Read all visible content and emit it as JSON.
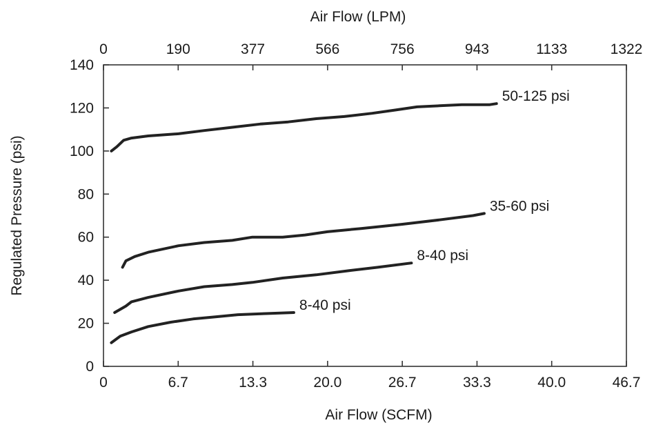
{
  "chart_data": {
    "type": "line",
    "title": "",
    "xlabel": "Air Flow (SCFM)",
    "x2label": "Air Flow (LPM)",
    "ylabel": "Regulated Pressure (psi)",
    "xlim": [
      0,
      46.7
    ],
    "ylim": [
      0,
      140
    ],
    "x_ticks": [
      "0",
      "6.7",
      "13.3",
      "20.0",
      "26.7",
      "33.3",
      "40.0",
      "46.7"
    ],
    "x2_ticks": [
      "0",
      "190",
      "377",
      "566",
      "756",
      "943",
      "1133",
      "1322"
    ],
    "y_ticks": [
      "0",
      "20",
      "40",
      "60",
      "80",
      "100",
      "120",
      "140"
    ],
    "grid": false,
    "legend": "none",
    "series": [
      {
        "name": "50-125 psi",
        "x": [
          0.7,
          1.2,
          1.8,
          2.5,
          4.0,
          6.7,
          9.0,
          11.5,
          14.0,
          16.5,
          19.0,
          21.5,
          24.0,
          26.0,
          28.0,
          30.0,
          32.0,
          34.5,
          35.1
        ],
        "y": [
          100,
          102,
          105,
          106,
          107,
          108,
          109.5,
          111,
          112.5,
          113.5,
          115,
          116,
          117.5,
          119,
          120.5,
          121,
          121.5,
          121.5,
          122
        ]
      },
      {
        "name": "35-60 psi",
        "x": [
          1.7,
          2.0,
          2.8,
          4.0,
          6.7,
          9.0,
          11.5,
          13.3,
          16.0,
          18.0,
          20.0,
          23.0,
          26.7,
          30.0,
          33.0,
          34.0
        ],
        "y": [
          46,
          49,
          51,
          53,
          56,
          57.5,
          58.5,
          60,
          60,
          61,
          62.5,
          64,
          66,
          68,
          70,
          71
        ]
      },
      {
        "name": "8-40 psi",
        "x": [
          1.0,
          2.0,
          2.5,
          4.0,
          6.7,
          9.0,
          11.5,
          13.3,
          16.0,
          19.0,
          22.0,
          24.5,
          27.5
        ],
        "y": [
          25,
          28,
          30,
          32,
          35,
          37,
          38,
          39,
          41,
          42.5,
          44.5,
          46,
          48
        ]
      },
      {
        "name": "8-40 psi",
        "x": [
          0.7,
          1.5,
          2.5,
          4.0,
          6.0,
          8.0,
          10.0,
          12.0,
          14.5,
          17.0
        ],
        "y": [
          11,
          14,
          16,
          18.5,
          20.5,
          22,
          23,
          24,
          24.5,
          25
        ]
      }
    ]
  }
}
